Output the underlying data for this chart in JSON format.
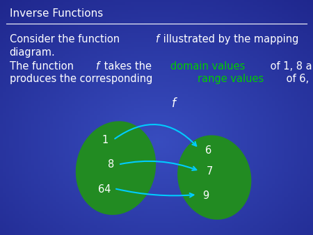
{
  "title": "Inverse Functions",
  "bg_color_center": "#1a3a8a",
  "bg_color_edge": "#00008B",
  "title_color": "#FFFFFF",
  "text_color": "#FFFFFF",
  "domain_color": "#00CC00",
  "range_color": "#00CC00",
  "ellipse_color": "#228B22",
  "arrow_color": "#00CCFF",
  "domain_values": [
    "1",
    "8",
    "64"
  ],
  "range_values": [
    "6",
    "7",
    "9"
  ],
  "fontsize_main": 10.5,
  "fontsize_title": 11
}
